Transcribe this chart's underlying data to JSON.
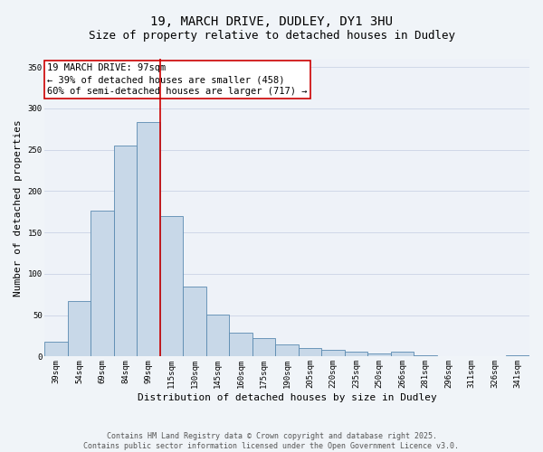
{
  "title1": "19, MARCH DRIVE, DUDLEY, DY1 3HU",
  "title2": "Size of property relative to detached houses in Dudley",
  "xlabel": "Distribution of detached houses by size in Dudley",
  "ylabel": "Number of detached properties",
  "categories": [
    "39sqm",
    "54sqm",
    "69sqm",
    "84sqm",
    "99sqm",
    "115sqm",
    "130sqm",
    "145sqm",
    "160sqm",
    "175sqm",
    "190sqm",
    "205sqm",
    "220sqm",
    "235sqm",
    "250sqm",
    "266sqm",
    "281sqm",
    "296sqm",
    "311sqm",
    "326sqm",
    "341sqm"
  ],
  "values": [
    18,
    67,
    176,
    255,
    283,
    170,
    85,
    51,
    29,
    22,
    15,
    10,
    8,
    6,
    4,
    6,
    2,
    1,
    0,
    0,
    2
  ],
  "bar_color": "#c8d8e8",
  "bar_edge_color": "#5a8ab0",
  "vline_index": 4.5,
  "vline_color": "#cc0000",
  "annotation_text": "19 MARCH DRIVE: 97sqm\n← 39% of detached houses are smaller (458)\n60% of semi-detached houses are larger (717) →",
  "annotation_box_color": "#ffffff",
  "annotation_box_edge": "#cc0000",
  "ylim": [
    0,
    360
  ],
  "yticks": [
    0,
    50,
    100,
    150,
    200,
    250,
    300,
    350
  ],
  "grid_color": "#d0d8e8",
  "background_color": "#eef2f8",
  "fig_background": "#f0f4f8",
  "footer_text": "Contains HM Land Registry data © Crown copyright and database right 2025.\nContains public sector information licensed under the Open Government Licence v3.0.",
  "title_fontsize": 10,
  "subtitle_fontsize": 9,
  "axis_label_fontsize": 8,
  "tick_fontsize": 6.5,
  "annotation_fontsize": 7.5,
  "footer_fontsize": 6
}
